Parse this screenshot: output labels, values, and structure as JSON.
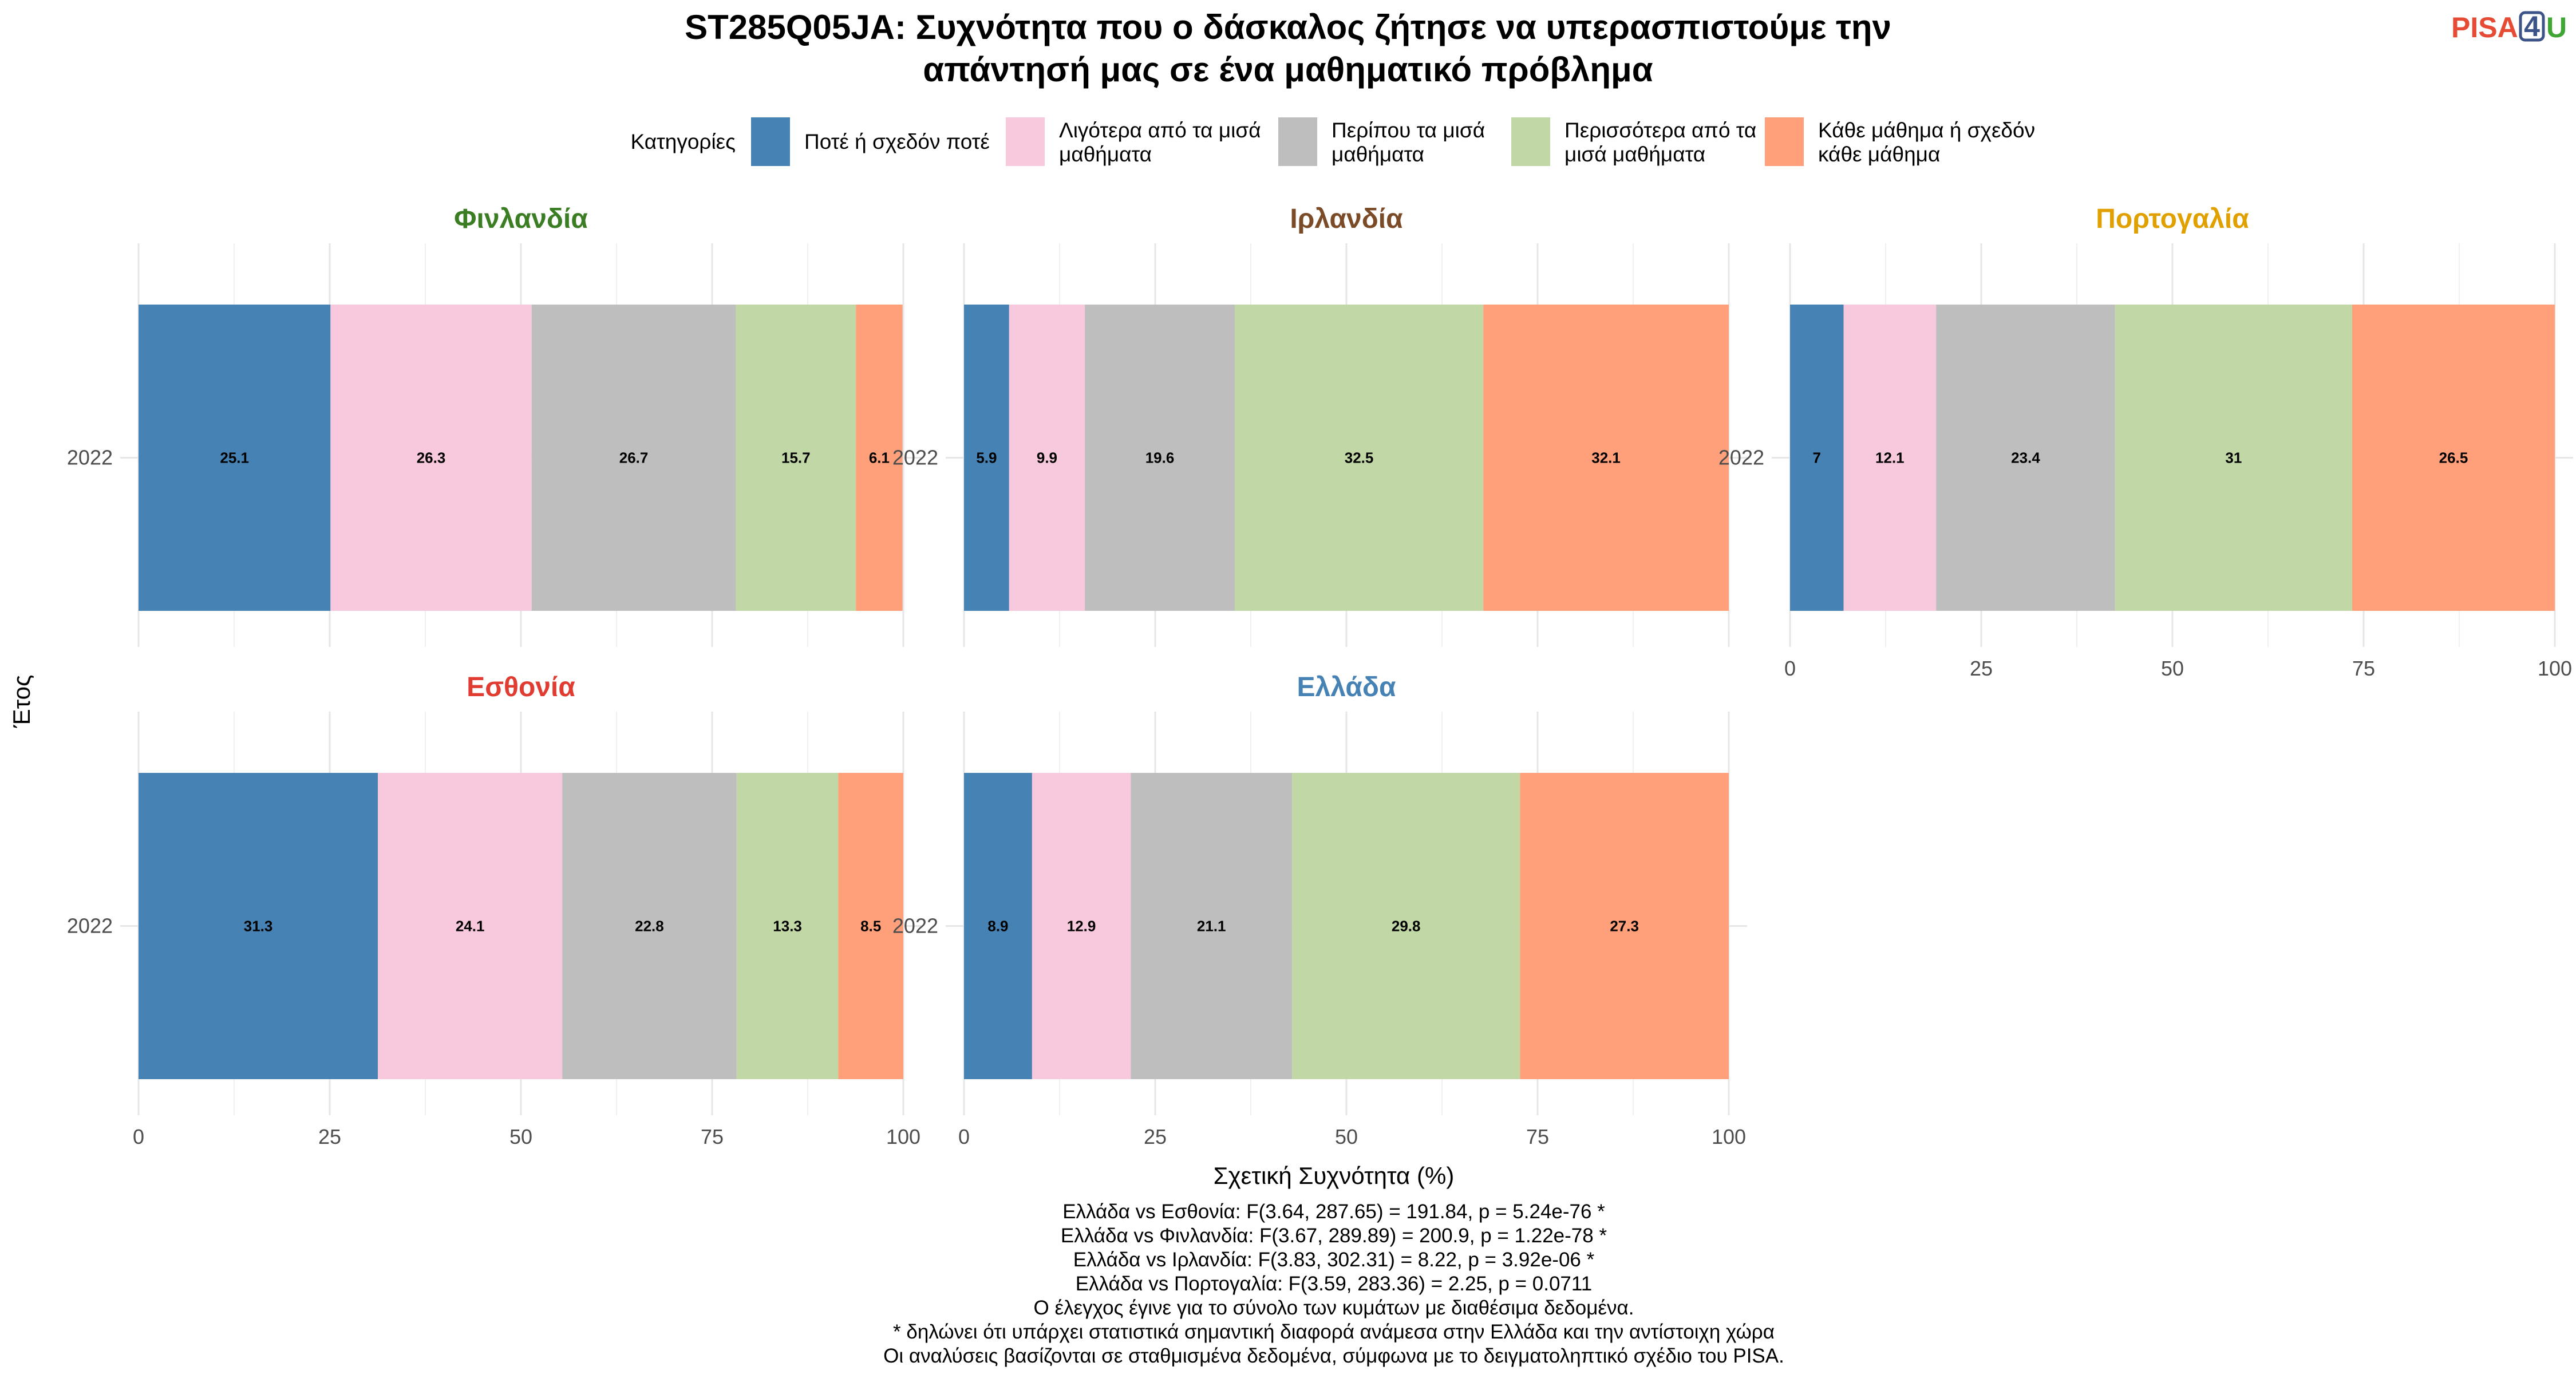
{
  "logo": {
    "text_a": "PISA",
    "text_b": "4",
    "text_c": "U",
    "color_a": "#E64B35",
    "color_b": "#3C5488",
    "color_c": "#3FA535"
  },
  "title_lines": [
    "ST285Q05JA: Συχνότητα που ο δάσκαλος ζήτησε να υπερασπιστούμε την",
    "απάντησή μας σε ένα μαθηματικό πρόβλημα"
  ],
  "legend": {
    "title": "Κατηγορίες",
    "items": [
      {
        "lines": [
          "Ποτέ ή σχεδόν ποτέ"
        ],
        "color": "#4682B4"
      },
      {
        "lines": [
          "Λιγότερα από τα μισά",
          "μαθήματα"
        ],
        "color": "#F8C8DC"
      },
      {
        "lines": [
          "Περίπου τα μισά",
          "μαθήματα"
        ],
        "color": "#BEBEBE"
      },
      {
        "lines": [
          "Περισσότερα από τα",
          "μισά μαθήματα"
        ],
        "color": "#C1D7A5"
      },
      {
        "lines": [
          "Κάθε μάθημα ή σχεδόν",
          "κάθε μάθημα"
        ],
        "color": "#FFA07A"
      }
    ]
  },
  "chart_data": {
    "type": "bar",
    "orientation": "horizontal",
    "stacked": true,
    "xlabel": "Σχετική Συχνότητα (%)",
    "ylabel": "Έτος",
    "xlim": [
      0,
      100
    ],
    "xticks": [
      "0",
      "25",
      "50",
      "75",
      "100"
    ],
    "categories": [
      "2022"
    ],
    "series_names": [
      "Ποτέ ή σχεδόν ποτέ",
      "Λιγότερα από τα μισά μαθήματα",
      "Περίπου τα μισά μαθήματα",
      "Περισσότερα από τα μισά μαθήματα",
      "Κάθε μάθημα ή σχεδόν κάθε μάθημα"
    ],
    "facets": [
      {
        "country": "Φινλανδία",
        "color": "#3A7D22",
        "values": [
          25.1,
          26.3,
          26.7,
          15.7,
          6.1
        ],
        "labels": [
          "25.1",
          "26.3",
          "26.7",
          "15.7",
          "6.1"
        ]
      },
      {
        "country": "Ιρλανδία",
        "color": "#7B4A26",
        "values": [
          5.9,
          9.9,
          19.6,
          32.5,
          32.1
        ],
        "labels": [
          "5.9",
          "9.9",
          "19.6",
          "32.5",
          "32.1"
        ]
      },
      {
        "country": "Πορτογαλία",
        "color": "#E0A000",
        "values": [
          7,
          12.1,
          23.4,
          31,
          26.5
        ],
        "labels": [
          "7",
          "12.1",
          "23.4",
          "31",
          "26.5"
        ]
      },
      {
        "country": "Εσθονία",
        "color": "#E03C31",
        "values": [
          31.3,
          24.1,
          22.8,
          13.3,
          8.5
        ],
        "labels": [
          "31.3",
          "24.1",
          "22.8",
          "13.3",
          "8.5"
        ]
      },
      {
        "country": "Ελλάδα",
        "color": "#4682B4",
        "values": [
          8.9,
          12.9,
          21.1,
          29.8,
          27.3
        ],
        "labels": [
          "8.9",
          "12.9",
          "21.1",
          "29.8",
          "27.3"
        ]
      }
    ]
  },
  "caption_lines": [
    "Ελλάδα vs Εσθονία: F(3.64, 287.65) = 191.84, p = 5.24e-76 *",
    "Ελλάδα vs Φινλανδία: F(3.67, 289.89) = 200.9, p = 1.22e-78 *",
    "Ελλάδα vs Ιρλανδία: F(3.83, 302.31) = 8.22, p = 3.92e-06 *",
    "Ελλάδα vs Πορτογαλία: F(3.59, 283.36) = 2.25, p = 0.0711",
    "Ο έλεγχος έγινε για το σύνολο των κυμάτων με διαθέσιμα δεδομένα.",
    "* δηλώνει ότι υπάρχει στατιστικά σημαντική διαφορά ανάμεσα στην Ελλάδα και την αντίστοιχη χώρα",
    "Οι αναλύσεις βασίζονται σε σταθμισμένα δεδομένα, σύμφωνα με το δειγματοληπτικό σχέδιο του PISA."
  ]
}
